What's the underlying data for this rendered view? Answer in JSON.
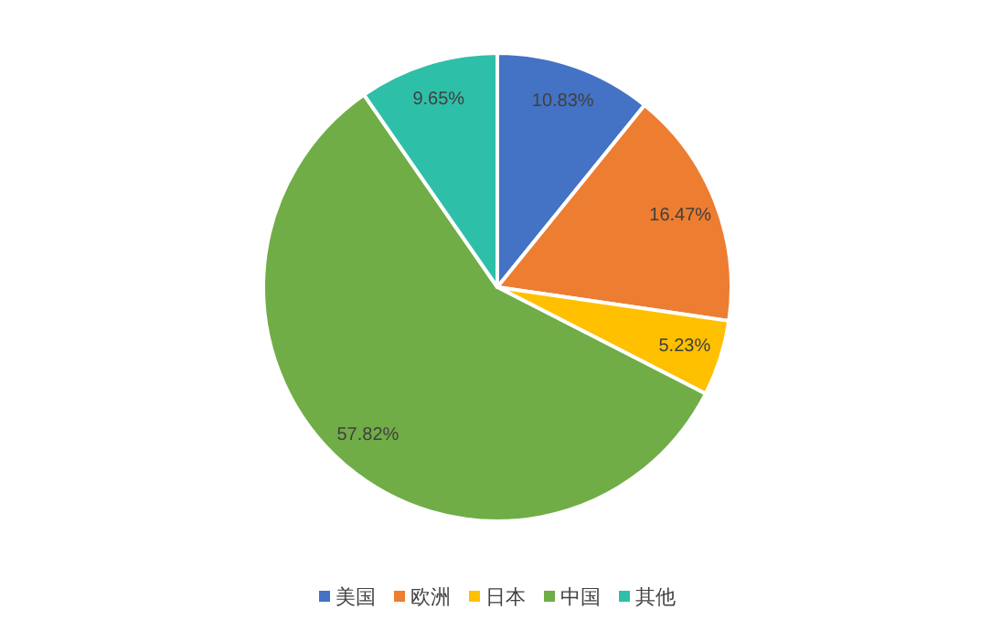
{
  "chart_data": {
    "type": "pie",
    "categories": [
      "美国",
      "欧洲",
      "日本",
      "中国",
      "其他"
    ],
    "values": [
      10.83,
      16.47,
      5.23,
      57.82,
      9.65
    ],
    "value_labels": [
      "10.83%",
      "16.47%",
      "5.23%",
      "57.82%",
      "9.65%"
    ],
    "colors": [
      "#4472c4",
      "#ed7d31",
      "#ffc000",
      "#70ad47",
      "#2ebfa8"
    ],
    "legend": "bottom"
  }
}
